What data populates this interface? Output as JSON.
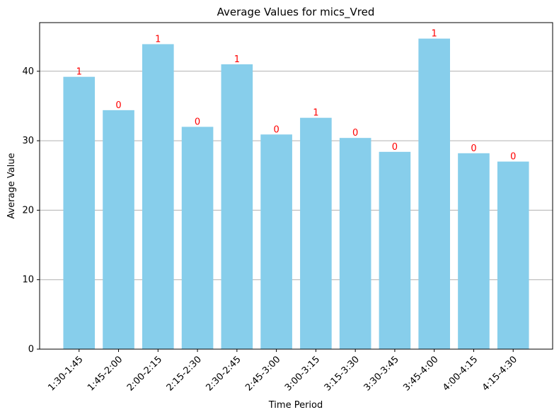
{
  "chart_data": {
    "type": "bar",
    "title": "Average Values for mics_Vred",
    "xlabel": "Time Period",
    "ylabel": "Average Value",
    "categories": [
      "1:30-1:45",
      "1:45-2:00",
      "2:00-2:15",
      "2:15-2:30",
      "2:30-2:45",
      "2:45-3:00",
      "3:00-3:15",
      "3:15-3:30",
      "3:30-3:45",
      "3:45-4:00",
      "4:00-4:15",
      "4:15-4:30"
    ],
    "values": [
      39.2,
      34.4,
      43.9,
      32.0,
      41.0,
      30.9,
      33.3,
      30.4,
      28.4,
      44.7,
      28.2,
      27.0
    ],
    "bar_labels": [
      "1",
      "0",
      "1",
      "0",
      "1",
      "0",
      "1",
      "0",
      "0",
      "1",
      "0",
      "0"
    ],
    "ylim": [
      0,
      47
    ],
    "yticks": [
      0,
      10,
      20,
      30,
      40
    ],
    "grid": "y",
    "bar_color": "#87ceeb",
    "label_color": "#ff0000"
  }
}
